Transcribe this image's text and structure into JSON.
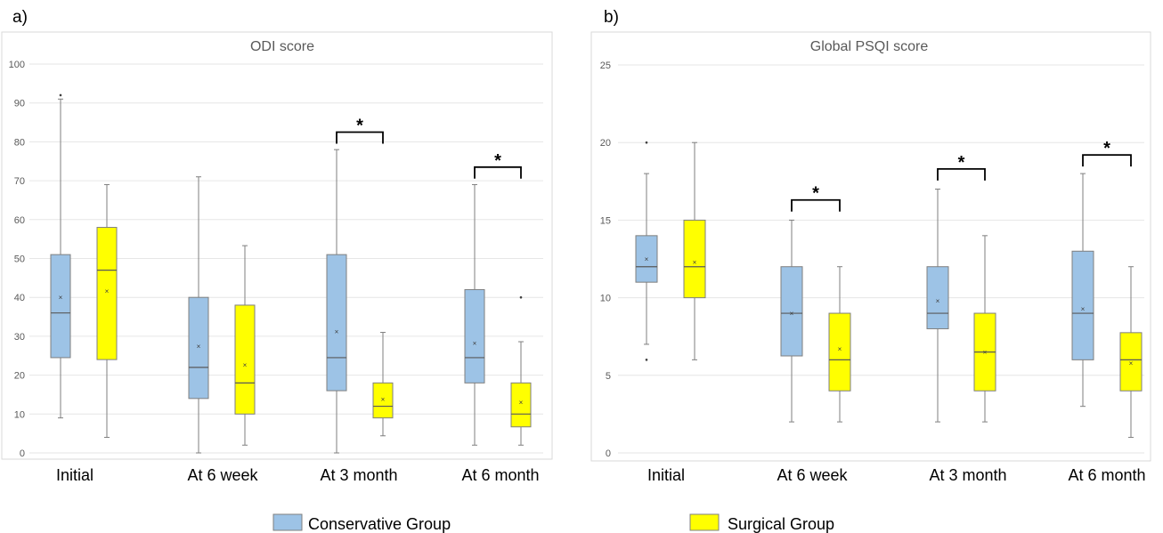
{
  "legend": {
    "conservative": "Conservative Group",
    "surgical": "Surgical Group"
  },
  "colors": {
    "conservative": "#9DC3E6",
    "surgical": "#FFFF00",
    "box_stroke": "#7f7f7f",
    "grid": "#e6e6e6",
    "whisker": "#7f7f7f"
  },
  "chart_data": [
    {
      "type": "box",
      "panel_label": "a)",
      "title": "ODI score",
      "categories": [
        "Initial",
        "At 6 week",
        "At 3 month",
        "At 6 month"
      ],
      "ylim": [
        0,
        100
      ],
      "yticks": [
        "0",
        "10",
        "20",
        "30",
        "40",
        "50",
        "60",
        "70",
        "80",
        "90",
        "100"
      ],
      "grid": true,
      "series": [
        {
          "name": "Conservative Group",
          "boxes": [
            {
              "min": 9,
              "q1": 24.5,
              "median": 36,
              "q3": 51,
              "max": 91,
              "mean": 40,
              "outliers": [
                92
              ]
            },
            {
              "min": 0,
              "q1": 14,
              "median": 22,
              "q3": 40,
              "max": 71,
              "mean": 27.5,
              "outliers": []
            },
            {
              "min": 0,
              "q1": 16,
              "median": 24.5,
              "q3": 51,
              "max": 78,
              "mean": 31.2,
              "outliers": []
            },
            {
              "min": 2,
              "q1": 18,
              "median": 24.5,
              "q3": 42,
              "max": 69,
              "mean": 28.3,
              "outliers": []
            }
          ]
        },
        {
          "name": "Surgical Group",
          "boxes": [
            {
              "min": 4,
              "q1": 24,
              "median": 47,
              "q3": 58,
              "max": 69,
              "mean": 41.6,
              "outliers": []
            },
            {
              "min": 2,
              "q1": 10,
              "median": 18,
              "q3": 38,
              "max": 53.3,
              "mean": 22.6,
              "outliers": []
            },
            {
              "min": 4.4,
              "q1": 9,
              "median": 12,
              "q3": 18,
              "max": 31,
              "mean": 13.8,
              "outliers": []
            },
            {
              "min": 2,
              "q1": 6.7,
              "median": 10,
              "q3": 18,
              "max": 28.6,
              "mean": 13,
              "outliers": [
                40
              ]
            }
          ]
        }
      ],
      "significance": [
        {
          "category_index": 2,
          "label": "*",
          "y": 82.5
        },
        {
          "category_index": 3,
          "label": "*",
          "y": 73.5
        }
      ]
    },
    {
      "type": "box",
      "panel_label": "b)",
      "title": "Global PSQI score",
      "categories": [
        "Initial",
        "At 6 week",
        "At 3 month",
        "At 6 month"
      ],
      "ylim": [
        0,
        25
      ],
      "yticks": [
        "0",
        "5",
        "10",
        "15",
        "20",
        "25"
      ],
      "grid": true,
      "series": [
        {
          "name": "Conservative Group",
          "boxes": [
            {
              "min": 7,
              "q1": 11,
              "median": 12,
              "q3": 14,
              "max": 18,
              "mean": 12.5,
              "outliers": [
                20,
                6
              ]
            },
            {
              "min": 2,
              "q1": 6.25,
              "median": 9,
              "q3": 12,
              "max": 15,
              "mean": 9,
              "outliers": []
            },
            {
              "min": 2,
              "q1": 8,
              "median": 9,
              "q3": 12,
              "max": 17,
              "mean": 9.8,
              "outliers": []
            },
            {
              "min": 3,
              "q1": 6,
              "median": 9,
              "q3": 13,
              "max": 18,
              "mean": 9.3,
              "outliers": []
            }
          ]
        },
        {
          "name": "Surgical Group",
          "boxes": [
            {
              "min": 6,
              "q1": 10,
              "median": 12,
              "q3": 15,
              "max": 20,
              "mean": 12.3,
              "outliers": []
            },
            {
              "min": 2,
              "q1": 4,
              "median": 6,
              "q3": 9,
              "max": 12,
              "mean": 6.7,
              "outliers": []
            },
            {
              "min": 2,
              "q1": 4,
              "median": 6.5,
              "q3": 9,
              "max": 14,
              "mean": 6.5,
              "outliers": []
            },
            {
              "min": 1,
              "q1": 4,
              "median": 6,
              "q3": 7.75,
              "max": 12,
              "mean": 5.8,
              "outliers": []
            }
          ]
        }
      ],
      "significance": [
        {
          "category_index": 1,
          "label": "*",
          "y": 16.3
        },
        {
          "category_index": 2,
          "label": "*",
          "y": 18.3
        },
        {
          "category_index": 3,
          "label": "*",
          "y": 19.2
        }
      ]
    }
  ]
}
